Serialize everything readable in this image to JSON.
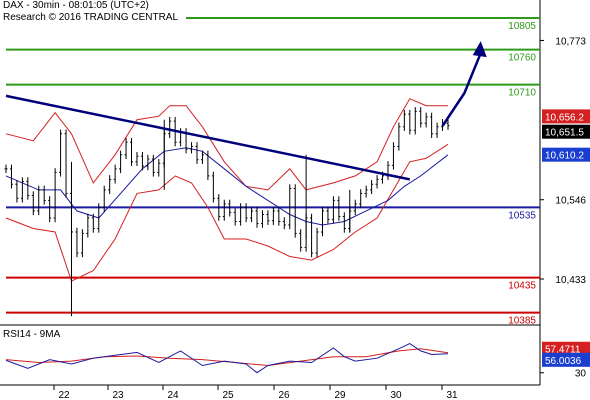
{
  "header": {
    "title": "DAX - 30min - 08:01:05 (UTC+2)",
    "subtitle": "Research © 2016 TRADING CENTRAL"
  },
  "colors": {
    "resistance": "#2e9a1a",
    "support": "#cc0000",
    "pivot": "#1a1aa0",
    "trendline": "#00007a",
    "bollinger": "#d42020",
    "moving_average": "#1a1aa0",
    "price": "#000000",
    "badge_red": "#d42020",
    "badge_blue": "#1a3fd0"
  },
  "chart_data": [
    {
      "type": "candlestick",
      "title": "DAX - 30min",
      "ylim": [
        10372,
        10850
      ],
      "y_ticks": [
        10433,
        10546,
        10773
      ],
      "y_tick_labels": [
        "10,433",
        "10,546",
        "10,773"
      ],
      "x_tick_labels": [
        "22",
        "23",
        "24",
        "25",
        "26",
        "29",
        "30",
        "31"
      ],
      "levels": [
        {
          "label": "10805",
          "value": 10805,
          "kind": "resistance"
        },
        {
          "label": "10760",
          "value": 10760,
          "kind": "resistance"
        },
        {
          "label": "10710",
          "value": 10710,
          "kind": "resistance"
        },
        {
          "label": "10535",
          "value": 10535,
          "kind": "pivot"
        },
        {
          "label": "10435",
          "value": 10435,
          "kind": "support"
        },
        {
          "label": "10385",
          "value": 10385,
          "kind": "support"
        }
      ],
      "price_badges": [
        {
          "label": "10,656.2",
          "value": 10656.2,
          "style": "red"
        },
        {
          "label": "10,651.5",
          "value": 10651.5,
          "style": "black"
        },
        {
          "label": "10,610.2",
          "value": 10610.2,
          "style": "blue"
        }
      ],
      "price_series": [
        [
          0,
          10590
        ],
        [
          1,
          10568
        ],
        [
          2,
          10548
        ],
        [
          3,
          10572
        ],
        [
          4,
          10552
        ],
        [
          5,
          10530
        ],
        [
          6,
          10560
        ],
        [
          7,
          10545
        ],
        [
          8,
          10520
        ],
        [
          9,
          10585
        ],
        [
          10,
          10640
        ],
        [
          11,
          10555
        ],
        [
          12,
          10500
        ],
        [
          13,
          10470
        ],
        [
          14,
          10498
        ],
        [
          15,
          10520
        ],
        [
          16,
          10505
        ],
        [
          17,
          10535
        ],
        [
          18,
          10560
        ],
        [
          19,
          10575
        ],
        [
          20,
          10590
        ],
        [
          21,
          10610
        ],
        [
          22,
          10628
        ],
        [
          23,
          10600
        ],
        [
          24,
          10608
        ],
        [
          25,
          10594
        ],
        [
          26,
          10604
        ],
        [
          27,
          10585
        ],
        [
          28,
          10598
        ],
        [
          29,
          10640
        ],
        [
          30,
          10658
        ],
        [
          31,
          10628
        ],
        [
          32,
          10642
        ],
        [
          33,
          10618
        ],
        [
          34,
          10622
        ],
        [
          35,
          10603
        ],
        [
          36,
          10610
        ],
        [
          37,
          10580
        ],
        [
          38,
          10548
        ],
        [
          39,
          10522
        ],
        [
          40,
          10540
        ],
        [
          41,
          10528
        ],
        [
          42,
          10515
        ],
        [
          43,
          10535
        ],
        [
          44,
          10520
        ],
        [
          45,
          10530
        ],
        [
          46,
          10512
        ],
        [
          47,
          10525
        ],
        [
          48,
          10516
        ],
        [
          49,
          10530
        ],
        [
          50,
          10515
        ],
        [
          51,
          10510
        ],
        [
          52,
          10562
        ],
        [
          53,
          10498
        ],
        [
          54,
          10478
        ],
        [
          55,
          10520
        ],
        [
          56,
          10470
        ],
        [
          57,
          10500
        ],
        [
          58,
          10530
        ],
        [
          59,
          10518
        ],
        [
          60,
          10545
        ],
        [
          61,
          10522
        ],
        [
          62,
          10505
        ],
        [
          63,
          10530
        ],
        [
          64,
          10540
        ],
        [
          65,
          10555
        ],
        [
          66,
          10560
        ],
        [
          67,
          10568
        ],
        [
          68,
          10575
        ],
        [
          69,
          10580
        ],
        [
          70,
          10595
        ],
        [
          71,
          10622
        ],
        [
          72,
          10650
        ],
        [
          73,
          10668
        ],
        [
          74,
          10645
        ],
        [
          75,
          10672
        ],
        [
          76,
          10655
        ],
        [
          77,
          10664
        ],
        [
          78,
          10640
        ],
        [
          79,
          10650
        ],
        [
          80,
          10655
        ],
        [
          81,
          10651.5
        ]
      ],
      "bollinger_upper": [
        [
          0,
          10640
        ],
        [
          5,
          10630
        ],
        [
          9,
          10670
        ],
        [
          12,
          10640
        ],
        [
          16,
          10570
        ],
        [
          20,
          10610
        ],
        [
          24,
          10660
        ],
        [
          28,
          10665
        ],
        [
          30,
          10680
        ],
        [
          33,
          10680
        ],
        [
          36,
          10650
        ],
        [
          40,
          10600
        ],
        [
          44,
          10565
        ],
        [
          48,
          10560
        ],
        [
          52,
          10590
        ],
        [
          55,
          10560
        ],
        [
          60,
          10570
        ],
        [
          64,
          10580
        ],
        [
          68,
          10600
        ],
        [
          71,
          10650
        ],
        [
          74,
          10690
        ],
        [
          77,
          10680
        ],
        [
          81,
          10680
        ]
      ],
      "bollinger_lower": [
        [
          0,
          10520
        ],
        [
          5,
          10505
        ],
        [
          9,
          10500
        ],
        [
          12,
          10430
        ],
        [
          16,
          10445
        ],
        [
          20,
          10490
        ],
        [
          24,
          10555
        ],
        [
          28,
          10560
        ],
        [
          31,
          10580
        ],
        [
          34,
          10570
        ],
        [
          37,
          10535
        ],
        [
          40,
          10490
        ],
        [
          44,
          10490
        ],
        [
          48,
          10480
        ],
        [
          52,
          10465
        ],
        [
          56,
          10460
        ],
        [
          60,
          10475
        ],
        [
          64,
          10500
        ],
        [
          68,
          10520
        ],
        [
          71,
          10560
        ],
        [
          74,
          10600
        ],
        [
          77,
          10605
        ],
        [
          81,
          10625
        ]
      ],
      "moving_average": [
        [
          0,
          10580
        ],
        [
          6,
          10560
        ],
        [
          10,
          10560
        ],
        [
          13,
          10530
        ],
        [
          17,
          10520
        ],
        [
          21,
          10555
        ],
        [
          25,
          10590
        ],
        [
          29,
          10615
        ],
        [
          33,
          10620
        ],
        [
          36,
          10615
        ],
        [
          40,
          10590
        ],
        [
          44,
          10565
        ],
        [
          48,
          10545
        ],
        [
          52,
          10525
        ],
        [
          55,
          10515
        ],
        [
          58,
          10510
        ],
        [
          62,
          10515
        ],
        [
          66,
          10530
        ],
        [
          70,
          10545
        ],
        [
          73,
          10565
        ],
        [
          76,
          10580
        ],
        [
          81,
          10610
        ]
      ],
      "trendline": [
        [
          0,
          10694
        ],
        [
          74,
          10575
        ]
      ],
      "projection_arrow": [
        [
          80,
          10651
        ],
        [
          84,
          10698
        ],
        [
          87,
          10772
        ]
      ]
    },
    {
      "type": "line",
      "title": "RSI14 - 9MA",
      "y_ticks": [
        30
      ],
      "y_tick_labels": [
        "30"
      ],
      "ylim": [
        20,
        75
      ],
      "price_badges": [
        {
          "label": "57.4711",
          "value": 57.4711,
          "style": "red"
        },
        {
          "label": "56.0036",
          "value": 56.0036,
          "style": "blue"
        }
      ],
      "series": [
        {
          "name": "RSI14",
          "values": [
            [
              0,
              47
            ],
            [
              4,
              36
            ],
            [
              8,
              48
            ],
            [
              12,
              42
            ],
            [
              16,
              50
            ],
            [
              20,
              54
            ],
            [
              24,
              58
            ],
            [
              28,
              44
            ],
            [
              32,
              60
            ],
            [
              36,
              40
            ],
            [
              40,
              46
            ],
            [
              44,
              42
            ],
            [
              46,
              30
            ],
            [
              48,
              40
            ],
            [
              52,
              46
            ],
            [
              56,
              44
            ],
            [
              60,
              64
            ],
            [
              62,
              52
            ],
            [
              64,
              46
            ],
            [
              68,
              50
            ],
            [
              72,
              63
            ],
            [
              74,
              70
            ],
            [
              76,
              60
            ],
            [
              78,
              55
            ],
            [
              81,
              56
            ]
          ]
        },
        {
          "name": "9MA",
          "values": [
            [
              0,
              48
            ],
            [
              6,
              44
            ],
            [
              12,
              46
            ],
            [
              18,
              52
            ],
            [
              24,
              53
            ],
            [
              30,
              50
            ],
            [
              36,
              48
            ],
            [
              42,
              44
            ],
            [
              48,
              40
            ],
            [
              54,
              46
            ],
            [
              60,
              52
            ],
            [
              66,
              52
            ],
            [
              72,
              60
            ],
            [
              76,
              63
            ],
            [
              81,
              57.5
            ]
          ]
        }
      ]
    }
  ]
}
